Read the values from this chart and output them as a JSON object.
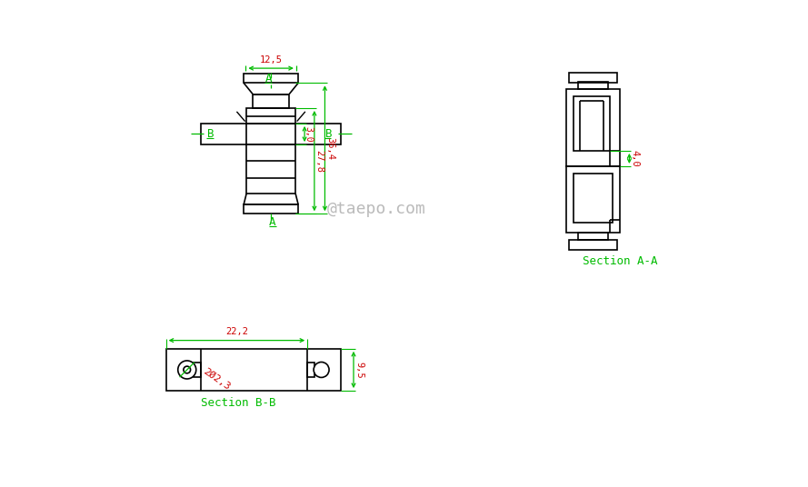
{
  "bg_color": "#ffffff",
  "line_color": "#000000",
  "green_color": "#00bb00",
  "red_color": "#cc0000",
  "watermark": "@taepo.com",
  "dim_12_5": "12,5",
  "dim_36_4": "36,4",
  "dim_27_8": "27,8",
  "dim_3_0": "3,0",
  "dim_4_0": "4,0",
  "dim_22_2": "22,2",
  "dim_9_5": "9,5",
  "dim_202_3": "2Ø2,3",
  "label_A": "A",
  "label_B": "B",
  "section_AA": "Section A-A",
  "section_BB": "Section B-B"
}
